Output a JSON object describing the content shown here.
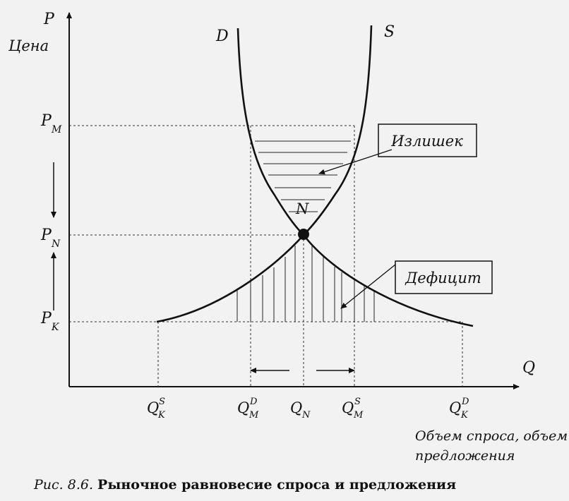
{
  "axes": {
    "y_symbol": "P",
    "y_word": "Цена",
    "x_symbol": "Q",
    "x_word_line1": "Объем спроса, объем",
    "x_word_line2": "предложения"
  },
  "curves": {
    "demand": "D",
    "supply": "S",
    "equilibrium": "N"
  },
  "price_levels": [
    {
      "main": "P",
      "sub": "M"
    },
    {
      "main": "P",
      "sub": "N"
    },
    {
      "main": "P",
      "sub": "K"
    }
  ],
  "quantity_levels": [
    {
      "main": "Q",
      "sup": "S",
      "sub": "K"
    },
    {
      "main": "Q",
      "sup": "D",
      "sub": "M"
    },
    {
      "main": "Q",
      "sup": "",
      "sub": "N"
    },
    {
      "main": "Q",
      "sup": "S",
      "sub": "M"
    },
    {
      "main": "Q",
      "sup": "D",
      "sub": "K"
    }
  ],
  "callouts": {
    "surplus": "Излишек",
    "deficit": "Дефицит"
  },
  "caption": {
    "number": "Рис. 8.6.",
    "text": "Рыночное равновесие спроса и предложения"
  }
}
